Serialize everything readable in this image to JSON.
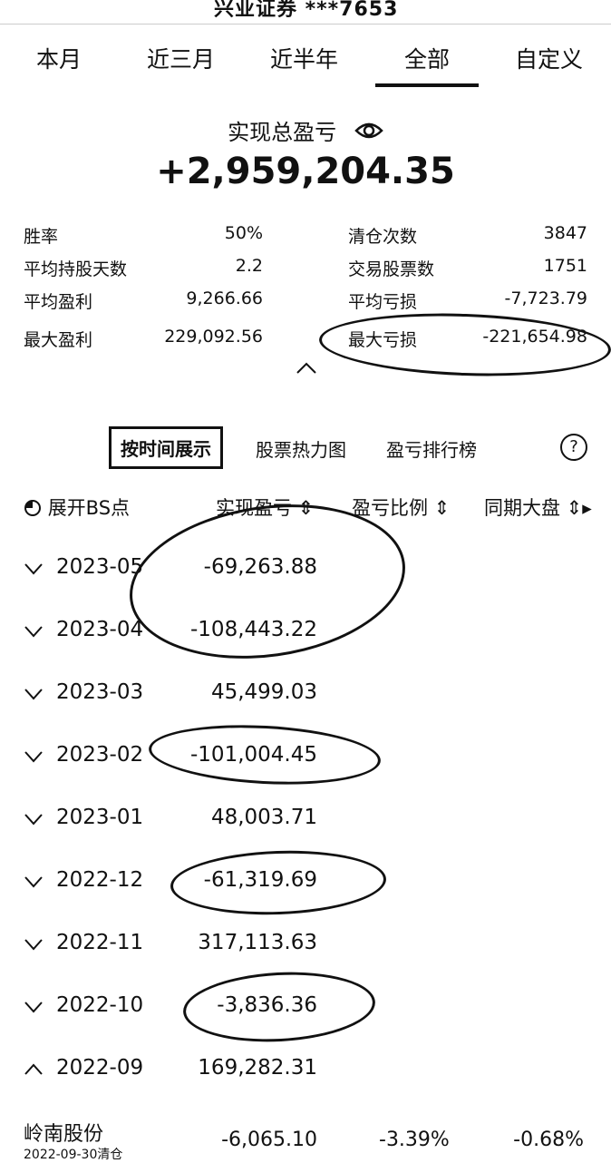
{
  "account": "兴业证券 ***7653",
  "tabs": [
    "本月",
    "近三月",
    "近半年",
    "全部",
    "自定义"
  ],
  "active_tab": "全部",
  "summary": {
    "title": "实现总盈亏",
    "total": "+2,959,204.35",
    "stats": [
      {
        "k": "胜率",
        "v": "50%"
      },
      {
        "k": "清仓次数",
        "v": "3847"
      },
      {
        "k": "平均持股天数",
        "v": "2.2"
      },
      {
        "k": "交易股票数",
        "v": "1751"
      },
      {
        "k": "平均盈利",
        "v": "9,266.66"
      },
      {
        "k": "平均亏损",
        "v": "-7,723.79"
      },
      {
        "k": "最大盈利",
        "v": "229,092.56"
      },
      {
        "k": "最大亏损",
        "v": "-221,654.98"
      }
    ]
  },
  "view_tabs": [
    "按时间展示",
    "股票热力图",
    "盈亏排行榜"
  ],
  "table_header": {
    "expand": "展开BS点",
    "pnl": "实现盈亏",
    "ratio": "盈亏比例",
    "market": "同期大盘"
  },
  "rows": [
    {
      "period": "2023-05",
      "value": "-69,263.88",
      "expanded": false
    },
    {
      "period": "2023-04",
      "value": "-108,443.22",
      "expanded": false
    },
    {
      "period": "2023-03",
      "value": "45,499.03",
      "expanded": false
    },
    {
      "period": "2023-02",
      "value": "-101,004.45",
      "expanded": false
    },
    {
      "period": "2023-01",
      "value": "48,003.71",
      "expanded": false
    },
    {
      "period": "2022-12",
      "value": "-61,319.69",
      "expanded": false
    },
    {
      "period": "2022-11",
      "value": "317,113.63",
      "expanded": false
    },
    {
      "period": "2022-10",
      "value": "-3,836.36",
      "expanded": false
    },
    {
      "period": "2022-09",
      "value": "169,282.31",
      "expanded": true
    }
  ],
  "stock_row": {
    "name": "岭南股份",
    "sub": "2022-09-30清仓",
    "pnl": "-6,065.10",
    "ratio": "-3.39%",
    "market": "-0.68%"
  }
}
